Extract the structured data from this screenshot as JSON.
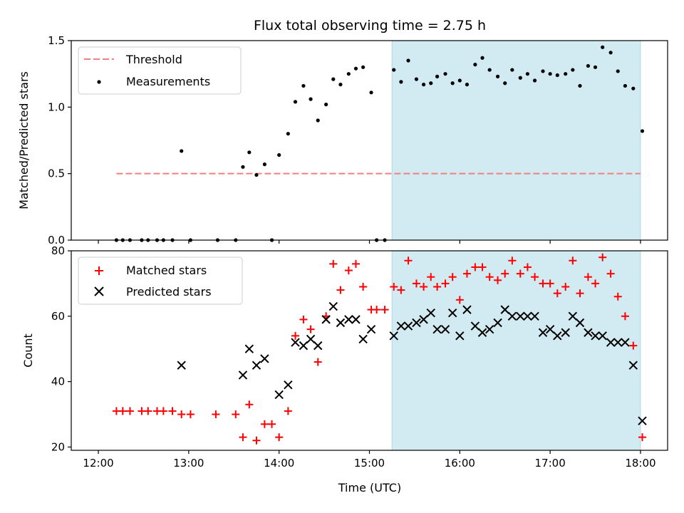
{
  "chart_data": {
    "type": "scatter",
    "title": "Flux total observing time = 2.75 h",
    "xlabel": "Time (UTC)",
    "x_unit": "hours UTC",
    "x_ticks": [
      {
        "value": 12,
        "label": "12:00"
      },
      {
        "value": 13,
        "label": "13:00"
      },
      {
        "value": 14,
        "label": "14:00"
      },
      {
        "value": 15,
        "label": "15:00"
      },
      {
        "value": 16,
        "label": "16:00"
      },
      {
        "value": 17,
        "label": "17:00"
      },
      {
        "value": 18,
        "label": "18:00"
      }
    ],
    "xlim": [
      11.7,
      18.3
    ],
    "shaded_region": {
      "x_start": 15.25,
      "x_end": 18.0,
      "color": "#add8e6"
    },
    "panels": [
      {
        "ylabel": "Matched/Predicted stars",
        "ylim": [
          0,
          1.5
        ],
        "y_ticks": [
          {
            "value": 0,
            "label": "0.0"
          },
          {
            "value": 0.5,
            "label": "0.5"
          },
          {
            "value": 1.0,
            "label": "1.0"
          },
          {
            "value": 1.5,
            "label": "1.5"
          }
        ],
        "legend": {
          "position": "upper-left"
        },
        "threshold": {
          "name": "Threshold",
          "value": 0.5,
          "x_start": 12.2,
          "x_end": 18.0,
          "color": "#f08080",
          "style": "dashed"
        },
        "series": [
          {
            "name": "Measurements",
            "marker": "dot",
            "color": "#000000",
            "points": [
              [
                12.2,
                0
              ],
              [
                12.27,
                0
              ],
              [
                12.35,
                0
              ],
              [
                12.48,
                0
              ],
              [
                12.55,
                0
              ],
              [
                12.65,
                0
              ],
              [
                12.72,
                0
              ],
              [
                12.82,
                0
              ],
              [
                12.92,
                0.67
              ],
              [
                13.02,
                0
              ],
              [
                13.32,
                0
              ],
              [
                13.52,
                0
              ],
              [
                13.6,
                0.55
              ],
              [
                13.67,
                0.66
              ],
              [
                13.75,
                0.49
              ],
              [
                13.84,
                0.57
              ],
              [
                13.92,
                0
              ],
              [
                14.0,
                0.64
              ],
              [
                14.1,
                0.8
              ],
              [
                14.18,
                1.04
              ],
              [
                14.27,
                1.16
              ],
              [
                14.35,
                1.06
              ],
              [
                14.43,
                0.9
              ],
              [
                14.52,
                1.02
              ],
              [
                14.6,
                1.21
              ],
              [
                14.68,
                1.17
              ],
              [
                14.77,
                1.25
              ],
              [
                14.85,
                1.29
              ],
              [
                14.93,
                1.3
              ],
              [
                15.02,
                1.11
              ],
              [
                15.08,
                0
              ],
              [
                15.17,
                0
              ],
              [
                15.27,
                1.28
              ],
              [
                15.35,
                1.19
              ],
              [
                15.43,
                1.35
              ],
              [
                15.52,
                1.21
              ],
              [
                15.6,
                1.17
              ],
              [
                15.68,
                1.18
              ],
              [
                15.75,
                1.23
              ],
              [
                15.84,
                1.25
              ],
              [
                15.92,
                1.18
              ],
              [
                16.0,
                1.2
              ],
              [
                16.08,
                1.17
              ],
              [
                16.17,
                1.32
              ],
              [
                16.25,
                1.37
              ],
              [
                16.33,
                1.28
              ],
              [
                16.42,
                1.23
              ],
              [
                16.5,
                1.18
              ],
              [
                16.58,
                1.28
              ],
              [
                16.67,
                1.22
              ],
              [
                16.75,
                1.25
              ],
              [
                16.83,
                1.2
              ],
              [
                16.92,
                1.27
              ],
              [
                17.0,
                1.25
              ],
              [
                17.08,
                1.24
              ],
              [
                17.17,
                1.25
              ],
              [
                17.25,
                1.28
              ],
              [
                17.33,
                1.16
              ],
              [
                17.42,
                1.31
              ],
              [
                17.5,
                1.3
              ],
              [
                17.58,
                1.45
              ],
              [
                17.67,
                1.41
              ],
              [
                17.75,
                1.27
              ],
              [
                17.83,
                1.16
              ],
              [
                17.92,
                1.14
              ],
              [
                18.02,
                0.82
              ]
            ]
          }
        ]
      },
      {
        "ylabel": "Count",
        "ylim": [
          19,
          80
        ],
        "y_ticks": [
          {
            "value": 20,
            "label": "20"
          },
          {
            "value": 40,
            "label": "40"
          },
          {
            "value": 60,
            "label": "60"
          },
          {
            "value": 80,
            "label": "80"
          }
        ],
        "legend": {
          "position": "upper-left"
        },
        "series": [
          {
            "name": "Matched stars",
            "marker": "plus",
            "color": "#ff0000",
            "points": [
              [
                12.2,
                31
              ],
              [
                12.27,
                31
              ],
              [
                12.35,
                31
              ],
              [
                12.48,
                31
              ],
              [
                12.55,
                31
              ],
              [
                12.65,
                31
              ],
              [
                12.72,
                31
              ],
              [
                12.82,
                31
              ],
              [
                12.92,
                30
              ],
              [
                13.02,
                30
              ],
              [
                13.3,
                30
              ],
              [
                13.52,
                30
              ],
              [
                13.6,
                23
              ],
              [
                13.67,
                33
              ],
              [
                13.75,
                22
              ],
              [
                13.84,
                27
              ],
              [
                13.92,
                27
              ],
              [
                14.0,
                23
              ],
              [
                14.1,
                31
              ],
              [
                14.18,
                54
              ],
              [
                14.27,
                59
              ],
              [
                14.35,
                56
              ],
              [
                14.43,
                46
              ],
              [
                14.52,
                60
              ],
              [
                14.6,
                76
              ],
              [
                14.68,
                68
              ],
              [
                14.77,
                74
              ],
              [
                14.85,
                76
              ],
              [
                14.93,
                69
              ],
              [
                15.02,
                62
              ],
              [
                15.08,
                62
              ],
              [
                15.17,
                62
              ],
              [
                15.27,
                69
              ],
              [
                15.35,
                68
              ],
              [
                15.43,
                77
              ],
              [
                15.52,
                70
              ],
              [
                15.6,
                69
              ],
              [
                15.68,
                72
              ],
              [
                15.75,
                69
              ],
              [
                15.84,
                70
              ],
              [
                15.92,
                72
              ],
              [
                16.0,
                65
              ],
              [
                16.08,
                73
              ],
              [
                16.17,
                75
              ],
              [
                16.25,
                75
              ],
              [
                16.33,
                72
              ],
              [
                16.42,
                71
              ],
              [
                16.5,
                73
              ],
              [
                16.58,
                77
              ],
              [
                16.67,
                73
              ],
              [
                16.75,
                75
              ],
              [
                16.83,
                72
              ],
              [
                16.92,
                70
              ],
              [
                17.0,
                70
              ],
              [
                17.08,
                67
              ],
              [
                17.17,
                69
              ],
              [
                17.25,
                77
              ],
              [
                17.33,
                67
              ],
              [
                17.42,
                72
              ],
              [
                17.5,
                70
              ],
              [
                17.58,
                78
              ],
              [
                17.67,
                73
              ],
              [
                17.75,
                66
              ],
              [
                17.83,
                60
              ],
              [
                17.92,
                51
              ],
              [
                18.02,
                23
              ]
            ]
          },
          {
            "name": "Predicted stars",
            "marker": "x",
            "color": "#000000",
            "points": [
              [
                12.92,
                45
              ],
              [
                13.6,
                42
              ],
              [
                13.67,
                50
              ],
              [
                13.75,
                45
              ],
              [
                13.84,
                47
              ],
              [
                14.0,
                36
              ],
              [
                14.1,
                39
              ],
              [
                14.18,
                52
              ],
              [
                14.27,
                51
              ],
              [
                14.35,
                53
              ],
              [
                14.43,
                51
              ],
              [
                14.52,
                59
              ],
              [
                14.6,
                63
              ],
              [
                14.68,
                58
              ],
              [
                14.77,
                59
              ],
              [
                14.85,
                59
              ],
              [
                14.93,
                53
              ],
              [
                15.02,
                56
              ],
              [
                15.27,
                54
              ],
              [
                15.35,
                57
              ],
              [
                15.43,
                57
              ],
              [
                15.52,
                58
              ],
              [
                15.6,
                59
              ],
              [
                15.68,
                61
              ],
              [
                15.75,
                56
              ],
              [
                15.84,
                56
              ],
              [
                15.92,
                61
              ],
              [
                16.0,
                54
              ],
              [
                16.08,
                62
              ],
              [
                16.17,
                57
              ],
              [
                16.25,
                55
              ],
              [
                16.33,
                56
              ],
              [
                16.42,
                58
              ],
              [
                16.5,
                62
              ],
              [
                16.58,
                60
              ],
              [
                16.67,
                60
              ],
              [
                16.75,
                60
              ],
              [
                16.83,
                60
              ],
              [
                16.92,
                55
              ],
              [
                17.0,
                56
              ],
              [
                17.08,
                54
              ],
              [
                17.17,
                55
              ],
              [
                17.25,
                60
              ],
              [
                17.33,
                58
              ],
              [
                17.42,
                55
              ],
              [
                17.5,
                54
              ],
              [
                17.58,
                54
              ],
              [
                17.67,
                52
              ],
              [
                17.75,
                52
              ],
              [
                17.83,
                52
              ],
              [
                17.92,
                45
              ],
              [
                18.02,
                28
              ]
            ]
          }
        ]
      }
    ]
  }
}
